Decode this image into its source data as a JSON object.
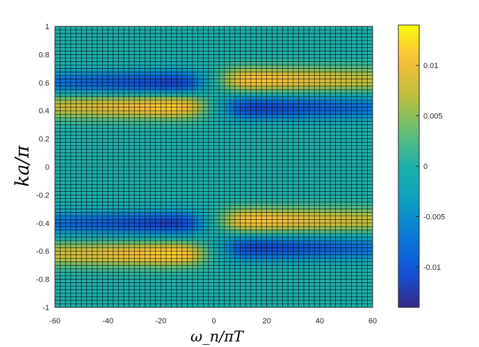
{
  "chart_data": {
    "type": "heatmap",
    "title": "",
    "xlabel": "ω_n/πT",
    "ylabel": "ka/π",
    "xlim": [
      -60,
      60
    ],
    "ylim": [
      -1,
      1
    ],
    "x_ticks": [
      -60,
      -40,
      -20,
      0,
      20,
      40,
      60
    ],
    "x_tick_labels": [
      "-60",
      "-40",
      "-20",
      "0",
      "20",
      "40",
      "60"
    ],
    "y_ticks": [
      -1,
      -0.8,
      -0.6,
      -0.4,
      -0.2,
      0,
      0.2,
      0.4,
      0.6,
      0.8,
      1
    ],
    "y_tick_labels": [
      "-1",
      "-0.8",
      "-0.6",
      "-0.4",
      "-0.2",
      "0",
      "0.2",
      "0.4",
      "0.6",
      "0.8",
      "1"
    ],
    "grid_x_count": 60,
    "grid_y_count": 80,
    "colormap": "parula",
    "color_range": [
      -0.014,
      0.014
    ],
    "colorbar": {
      "ticks": [
        -0.01,
        -0.005,
        0,
        0.005,
        0.01
      ],
      "tick_labels": [
        "-0.01",
        "-0.005",
        "0",
        "0.005",
        "0.01"
      ],
      "placement": "right"
    },
    "features": [
      {
        "k": 0.6,
        "omega_sign": -1,
        "value": -0.013
      },
      {
        "k": 0.43,
        "omega_sign": -1,
        "value": 0.013
      },
      {
        "k": -0.4,
        "omega_sign": -1,
        "value": -0.013
      },
      {
        "k": -0.62,
        "omega_sign": -1,
        "value": 0.013
      },
      {
        "k": 0.62,
        "omega_sign": 1,
        "value": 0.0125
      },
      {
        "k": 0.42,
        "omega_sign": 1,
        "value": -0.0125
      },
      {
        "k": -0.38,
        "omega_sign": 1,
        "value": 0.0125
      },
      {
        "k": -0.58,
        "omega_sign": 1,
        "value": -0.0125
      }
    ]
  }
}
